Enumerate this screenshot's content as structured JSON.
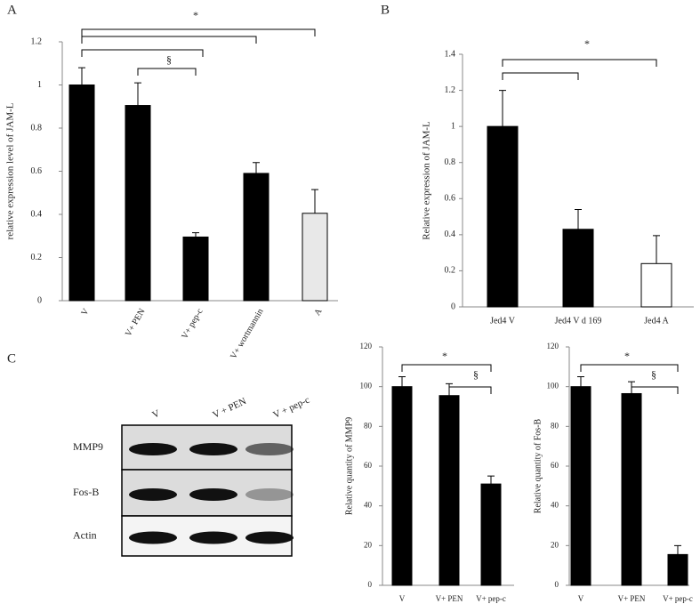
{
  "chart_data": [
    {
      "type": "bar",
      "panel": "A",
      "ylabel": "relative expression level of JAM-L",
      "categories": [
        "V",
        "V+ PEN",
        "V+ pep-c",
        "V+ wortmannin",
        "A"
      ],
      "values": [
        1.0,
        0.905,
        0.295,
        0.59,
        0.405
      ],
      "errors": [
        0.08,
        0.105,
        0.02,
        0.05,
        0.11
      ],
      "colors": [
        "#000000",
        "#000000",
        "#000000",
        "#000000",
        "#e8e8e8"
      ],
      "ylim": [
        0,
        1.2
      ],
      "yticks": [
        0,
        0.2,
        0.4,
        0.6,
        0.8,
        1,
        1.2
      ],
      "annotations": [
        "*",
        "§"
      ]
    },
    {
      "type": "bar",
      "panel": "B",
      "ylabel": "Relative expression of JAM-L",
      "categories": [
        "Jed4 V",
        "Jed4 V d 169",
        "Jed4 A"
      ],
      "values": [
        1.0,
        0.43,
        0.24
      ],
      "errors": [
        0.2,
        0.11,
        0.155
      ],
      "colors": [
        "#000000",
        "#000000",
        "#ffffff"
      ],
      "ylim": [
        0,
        1.4
      ],
      "yticks": [
        0,
        0.2,
        0.4,
        0.6,
        0.8,
        1,
        1.2,
        1.4
      ],
      "annotations": [
        "*"
      ]
    },
    {
      "type": "blot",
      "panel": "C",
      "lanes": [
        "V",
        "V + PEN",
        "V + pep-c"
      ],
      "rows": [
        "MMP9",
        "Fos-B",
        "Actin"
      ]
    },
    {
      "type": "bar",
      "ylabel": "Relative quantity of MMP9",
      "categories": [
        "V",
        "V+ PEN",
        "V+ pep-c"
      ],
      "values": [
        100,
        95.5,
        51
      ],
      "errors": [
        5,
        6,
        4
      ],
      "colors": [
        "#000000",
        "#000000",
        "#000000"
      ],
      "ylim": [
        0,
        120
      ],
      "yticks": [
        0,
        20,
        40,
        60,
        80,
        100,
        120
      ],
      "annotations": [
        "*",
        "§"
      ]
    },
    {
      "type": "bar",
      "ylabel": "Relative quantity of Fos-B",
      "categories": [
        "V",
        "V+ PEN",
        "V+ pep-c"
      ],
      "values": [
        100,
        96.5,
        15.5
      ],
      "errors": [
        5,
        6,
        4.5
      ],
      "colors": [
        "#000000",
        "#000000",
        "#000000"
      ],
      "ylim": [
        0,
        120
      ],
      "yticks": [
        0,
        20,
        40,
        60,
        80,
        100,
        120
      ],
      "annotations": [
        "*",
        "§"
      ]
    }
  ]
}
